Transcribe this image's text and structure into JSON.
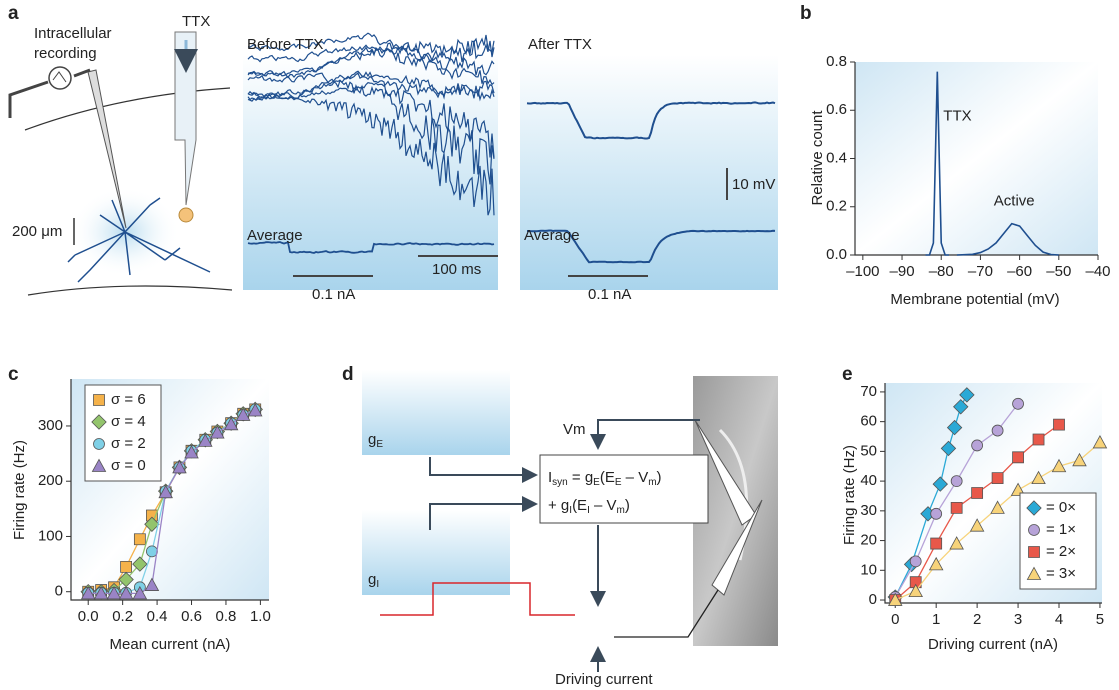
{
  "panel_labels": [
    "a",
    "b",
    "c",
    "d",
    "e"
  ],
  "panel_a": {
    "recording_label": [
      "Intracellular",
      "recording"
    ],
    "ttx_label": "TTX",
    "scale_um": "200 μm",
    "before_title": "Before TTX",
    "after_title": "After TTX",
    "average_before": "Average",
    "average_after": "Average",
    "time_scale": "100 ms",
    "current_before": "0.1 nA",
    "current_after": "0.1 nA",
    "voltage_scale": "10 mV"
  },
  "panel_d": {
    "g_e": [
      "g",
      "E"
    ],
    "g_i": [
      "g",
      "I"
    ],
    "vm": "Vm",
    "equation_line1": [
      "I",
      "syn",
      " = g",
      "E",
      "(E",
      "E",
      " – V",
      "m",
      ")"
    ],
    "equation_line2": [
      "+ g",
      "I",
      "(E",
      "I",
      " – V",
      "m",
      ")"
    ],
    "driving_current": "Driving current"
  },
  "chart_data": [
    {
      "type": "line",
      "x_label": "Membrane potential (mV)",
      "y_label": "Relative count",
      "xlim": [
        -102,
        -40
      ],
      "ylim": [
        0,
        0.8
      ],
      "xticks": [
        {
          "value": -100,
          "label": "–100"
        },
        {
          "value": -90,
          "label": "–90"
        },
        {
          "value": -80,
          "label": "–80"
        },
        {
          "value": -70,
          "label": "–70"
        },
        {
          "value": -60,
          "label": "–60"
        },
        {
          "value": -50,
          "label": "–50"
        },
        {
          "value": -40,
          "label": "–40"
        }
      ],
      "yticks": [
        {
          "value": 0,
          "label": "0.0"
        },
        0.2,
        0.4,
        0.6,
        0.8
      ],
      "series": [
        {
          "name": "TTX",
          "color": "#1f4f8f",
          "x": [
            -84,
            -83,
            -82,
            -81.5,
            -81,
            -80.5,
            -80,
            -79,
            -78
          ],
          "values": [
            0,
            0,
            0.05,
            0.4,
            0.76,
            0.4,
            0.05,
            0,
            0
          ]
        },
        {
          "name": "Active",
          "color": "#1f4f8f",
          "x": [
            -76,
            -72,
            -70,
            -68,
            -66,
            -64,
            -62,
            -60,
            -58,
            -56,
            -54,
            -52,
            -50
          ],
          "values": [
            0,
            0.003,
            0.01,
            0.025,
            0.05,
            0.09,
            0.13,
            0.12,
            0.08,
            0.04,
            0.012,
            0.002,
            0
          ]
        }
      ]
    },
    {
      "type": "line",
      "x_label": "Mean current (nA)",
      "y_label": "Firing rate (Hz)",
      "legend": "upper left",
      "xlim": [
        -0.1,
        1.05
      ],
      "ylim": [
        -15,
        385
      ],
      "xticks": [
        {
          "value": 0,
          "label": "0.0"
        },
        0.2,
        0.4,
        0.6,
        0.8,
        {
          "value": 1,
          "label": "1.0"
        }
      ],
      "yticks": [
        0,
        100,
        200,
        300
      ],
      "x": [
        0,
        0.075,
        0.15,
        0.22,
        0.3,
        0.37,
        0.45,
        0.53,
        0.6,
        0.68,
        0.75,
        0.83,
        0.9,
        0.97
      ],
      "series": [
        {
          "name": "σ = 6",
          "color": "#f5b24a",
          "marker": "square",
          "values": [
            0,
            3,
            8,
            45,
            95,
            138,
            180,
            225,
            255,
            275,
            290,
            305,
            322,
            330
          ]
        },
        {
          "name": "σ = 4",
          "color": "#93c46c",
          "marker": "diamond",
          "values": [
            0,
            0,
            2,
            22,
            50,
            122,
            182,
            225,
            255,
            275,
            290,
            305,
            322,
            330
          ]
        },
        {
          "name": "σ = 2",
          "color": "#7fd0e6",
          "marker": "circle",
          "values": [
            -2,
            -2,
            -2,
            -2,
            8,
            73,
            182,
            225,
            255,
            275,
            288,
            305,
            320,
            330
          ]
        },
        {
          "name": "σ = 0",
          "color": "#9a84c6",
          "marker": "triangle",
          "values": [
            -3,
            -3,
            -3,
            -3,
            -3,
            12,
            180,
            225,
            252,
            273,
            288,
            303,
            320,
            328
          ]
        }
      ]
    },
    {
      "type": "line",
      "x_label": "Driving current (nA)",
      "y_label": "Firing rate (Hz)",
      "legend": "lower right",
      "xlim": [
        -0.25,
        5.05
      ],
      "ylim": [
        -1,
        73
      ],
      "xticks": [
        0,
        1,
        2,
        3,
        4,
        5
      ],
      "yticks": [
        0,
        10,
        20,
        30,
        40,
        50,
        60,
        70
      ],
      "series": [
        {
          "name": "= 0×",
          "color": "#2aa9d6",
          "marker": "diamond",
          "x": [
            0,
            0.4,
            0.8,
            1.1,
            1.3,
            1.45,
            1.6,
            1.75
          ],
          "values": [
            1,
            12,
            29,
            39,
            51,
            58,
            65,
            69
          ]
        },
        {
          "name": "= 1×",
          "color": "#b7a3d8",
          "marker": "circle",
          "x": [
            0,
            0.5,
            1,
            1.5,
            2,
            2.5,
            3
          ],
          "values": [
            1,
            13,
            29,
            40,
            52,
            57,
            66
          ]
        },
        {
          "name": "= 2×",
          "color": "#e8584a",
          "marker": "square",
          "x": [
            0,
            0.5,
            1,
            1.5,
            2,
            2.5,
            3,
            3.5,
            4
          ],
          "values": [
            0,
            6,
            19,
            31,
            36,
            41,
            48,
            54,
            59
          ]
        },
        {
          "name": "= 3×",
          "color": "#f7d37a",
          "marker": "triangle",
          "x": [
            0,
            0.5,
            1,
            1.5,
            2,
            2.5,
            3,
            3.5,
            4,
            4.5,
            5
          ],
          "values": [
            0,
            3,
            12,
            19,
            25,
            31,
            37,
            41,
            45,
            47,
            53
          ]
        }
      ]
    }
  ]
}
